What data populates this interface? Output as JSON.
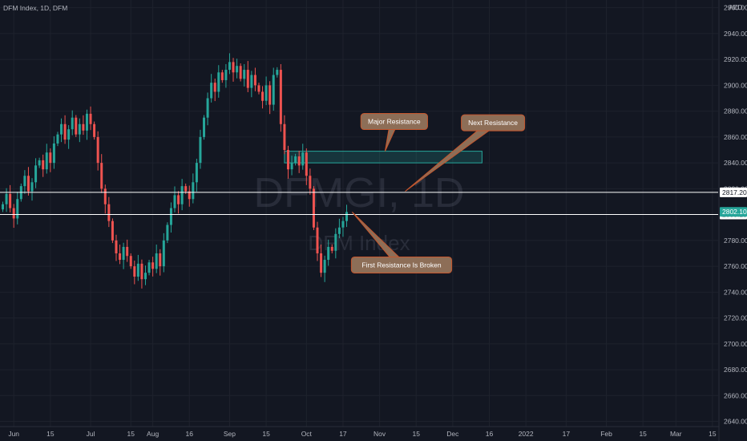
{
  "header": {
    "symbol_line": "DFM Index, 1D, DFM",
    "currency": "AED"
  },
  "watermark": {
    "ticker": "DFMGI, 1D",
    "name": "DFM Index"
  },
  "colors": {
    "background": "#131722",
    "grid": "#1e222d",
    "up": "#26a69a",
    "down": "#ef5350",
    "zone_border": "#26a69a",
    "note_fill": "#8d6e57",
    "note_border": "#c5562d",
    "level_line": "#ffffff",
    "last_price": "#26a69a"
  },
  "chart_data": {
    "type": "candlestick",
    "title": "DFM Index, 1D, DFM",
    "xlabel": "",
    "ylabel": "",
    "ylim": [
      2636,
      2966
    ],
    "xlim": [
      0,
      195
    ],
    "grid": true,
    "y_ticks": [
      2640,
      2660,
      2680,
      2700,
      2720,
      2740,
      2760,
      2780,
      2800,
      2820,
      2840,
      2860,
      2880,
      2900,
      2920,
      2940,
      2960
    ],
    "x_ticks": [
      {
        "label": "Jun",
        "x": 3
      },
      {
        "label": "15",
        "x": 13
      },
      {
        "label": "Jul",
        "x": 24
      },
      {
        "label": "15",
        "x": 35
      },
      {
        "label": "Aug",
        "x": 41
      },
      {
        "label": "16",
        "x": 51
      },
      {
        "label": "Sep",
        "x": 62
      },
      {
        "label": "15",
        "x": 72
      },
      {
        "label": "Oct",
        "x": 83
      },
      {
        "label": "17",
        "x": 93
      },
      {
        "label": "Nov",
        "x": 103
      },
      {
        "label": "15",
        "x": 113
      },
      {
        "label": "Dec",
        "x": 123
      },
      {
        "label": "16",
        "x": 133
      },
      {
        "label": "2022",
        "x": 143
      },
      {
        "label": "17",
        "x": 154
      },
      {
        "label": "Feb",
        "x": 165
      },
      {
        "label": "15",
        "x": 175
      },
      {
        "label": "Mar",
        "x": 184
      },
      {
        "label": "15",
        "x": 194
      }
    ],
    "closes": [
      2808,
      2816,
      2805,
      2797,
      2812,
      2822,
      2830,
      2818,
      2825,
      2838,
      2842,
      2835,
      2848,
      2840,
      2855,
      2862,
      2870,
      2858,
      2866,
      2875,
      2862,
      2870,
      2865,
      2878,
      2870,
      2860,
      2840,
      2820,
      2808,
      2795,
      2780,
      2770,
      2765,
      2775,
      2768,
      2760,
      2752,
      2762,
      2750,
      2755,
      2763,
      2758,
      2770,
      2760,
      2780,
      2792,
      2805,
      2815,
      2808,
      2822,
      2818,
      2812,
      2825,
      2840,
      2860,
      2875,
      2890,
      2902,
      2895,
      2910,
      2904,
      2912,
      2918,
      2910,
      2915,
      2905,
      2912,
      2898,
      2908,
      2900,
      2895,
      2888,
      2900,
      2885,
      2908,
      2912,
      2870,
      2850,
      2835,
      2840,
      2845,
      2838,
      2848,
      2830,
      2820,
      2790,
      2770,
      2755,
      2765,
      2775,
      2772,
      2785,
      2790,
      2795,
      2802
    ],
    "last_price": 2802.1,
    "levels": [
      {
        "label": "2817.20",
        "value": 2817.2
      },
      {
        "label": "2800.10",
        "value": 2800.1
      }
    ],
    "zone": {
      "x0": 77,
      "x1": 131,
      "y_low": 2840,
      "y_high": 2849
    },
    "annotations": [
      {
        "text": "Major Resistance",
        "x": 107,
        "y": 2872,
        "pointer_x": 104.5,
        "pointer_y": 2849
      },
      {
        "text": "Next Resistance",
        "x": 134,
        "y": 2871,
        "pointer_x": 110,
        "pointer_y": 2818
      },
      {
        "text": "First Resistance Is Broken",
        "x": 109,
        "y": 2761,
        "pointer_x": 95.5,
        "pointer_y": 2802
      }
    ]
  }
}
